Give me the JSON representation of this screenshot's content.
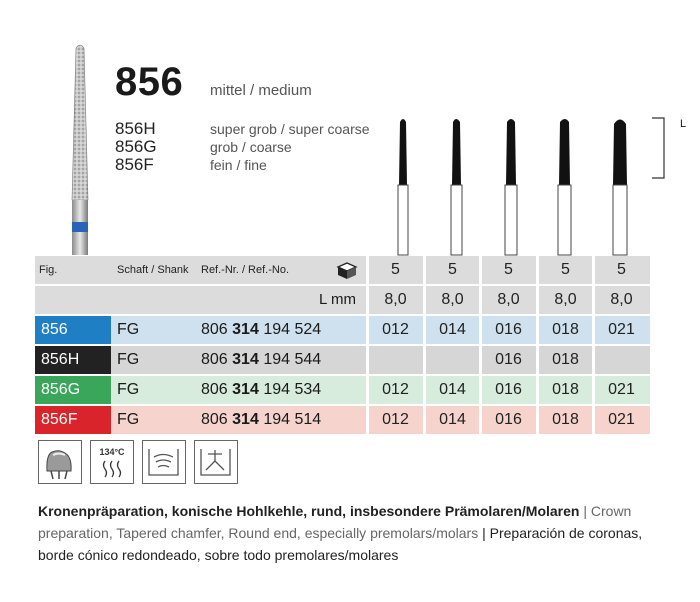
{
  "product": {
    "number": "856",
    "grade_main": "mittel / medium",
    "variants": [
      {
        "code": "856H",
        "desc": "super grob / super coarse"
      },
      {
        "code": "856G",
        "desc": "grob / coarse"
      },
      {
        "code": "856F",
        "desc": "fein / fine"
      }
    ],
    "length_marker": "L"
  },
  "table": {
    "headers": {
      "fig": "Fig.",
      "shank": "Schaft / Shank",
      "ref": "Ref.-Nr. / Ref.-No."
    },
    "pack_values": [
      "5",
      "5",
      "5",
      "5",
      "5"
    ],
    "length_label": "L mm",
    "length_values": [
      "8,0",
      "8,0",
      "8,0",
      "8,0",
      "8,0"
    ],
    "rows": [
      {
        "fig": "856",
        "shank": "FG",
        "ref_a": "806",
        "ref_b": "314",
        "ref_c": "194 524",
        "sizes": [
          "012",
          "014",
          "016",
          "018",
          "021"
        ]
      },
      {
        "fig": "856H",
        "shank": "FG",
        "ref_a": "806",
        "ref_b": "314",
        "ref_c": "194 544",
        "sizes": [
          "",
          "",
          "016",
          "018",
          ""
        ]
      },
      {
        "fig": "856G",
        "shank": "FG",
        "ref_a": "806",
        "ref_b": "314",
        "ref_c": "194 534",
        "sizes": [
          "012",
          "014",
          "016",
          "018",
          "021"
        ]
      },
      {
        "fig": "856F",
        "shank": "FG",
        "ref_a": "806",
        "ref_b": "314",
        "ref_c": "194 514",
        "sizes": [
          "012",
          "014",
          "016",
          "018",
          "021"
        ]
      }
    ]
  },
  "icons": {
    "sterilization_temp": "134°C",
    "names": [
      "crown-tooth-icon",
      "autoclave-134c-icon",
      "ultrasonic-bath-icon",
      "disinfection-icon"
    ]
  },
  "description": {
    "de": "Kronenpräparation, konische Hohlkehle, rund, insbesondere Prämolaren/Molaren",
    "sep1": " | ",
    "en": "Crown preparation, Tapered chamfer, Round end, especially premolars/molars",
    "sep2": " | ",
    "es": "Preparación de coronas, borde cónico redondeado, sobre todo premolares/molares"
  },
  "colors": {
    "row_856": "#1e7fc4",
    "row_856_bg": "#cfe0ef",
    "row_856H": "#222222",
    "row_856H_bg": "#d6d6d6",
    "row_856G": "#3aa65a",
    "row_856G_bg": "#d7ecdc",
    "row_856F": "#d8242a",
    "row_856F_bg": "#f6d4cd",
    "header_bg": "#dcdcdc"
  }
}
